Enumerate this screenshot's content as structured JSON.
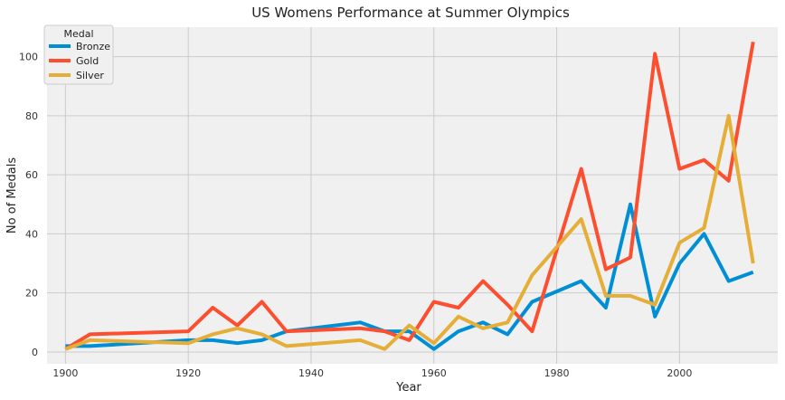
{
  "chart_data": {
    "type": "line",
    "title": "US Womens Performance at Summer Olympics",
    "xlabel": "Year",
    "ylabel": "No of Medals",
    "xlim": [
      1897,
      2016
    ],
    "ylim": [
      -4,
      110
    ],
    "xticks": [
      1900,
      1920,
      1940,
      1960,
      1980,
      2000
    ],
    "yticks": [
      0,
      20,
      40,
      60,
      80,
      100
    ],
    "grid": true,
    "legend": {
      "title": "Medal",
      "position": "top-left"
    },
    "x": [
      1900,
      1904,
      1920,
      1924,
      1928,
      1932,
      1936,
      1948,
      1952,
      1956,
      1960,
      1964,
      1968,
      1972,
      1976,
      1984,
      1988,
      1992,
      1996,
      2000,
      2004,
      2008,
      2012
    ],
    "series": [
      {
        "name": "Bronze",
        "color": "#008fd5",
        "values": [
          2,
          2,
          4,
          4,
          3,
          4,
          7,
          10,
          7,
          7,
          1,
          7,
          10,
          6,
          17,
          24,
          15,
          50,
          12,
          30,
          40,
          24,
          27
        ]
      },
      {
        "name": "Gold",
        "color": "#fc4f30",
        "values": [
          1,
          6,
          7,
          15,
          9,
          17,
          7,
          8,
          7,
          4,
          17,
          15,
          24,
          16,
          7,
          62,
          28,
          32,
          101,
          62,
          65,
          58,
          105
        ]
      },
      {
        "name": "Silver",
        "color": "#e5ae38",
        "values": [
          1,
          4,
          3,
          6,
          8,
          6,
          2,
          4,
          1,
          9,
          3,
          12,
          8,
          10,
          26,
          45,
          19,
          19,
          16,
          37,
          42,
          80,
          30
        ]
      }
    ]
  }
}
